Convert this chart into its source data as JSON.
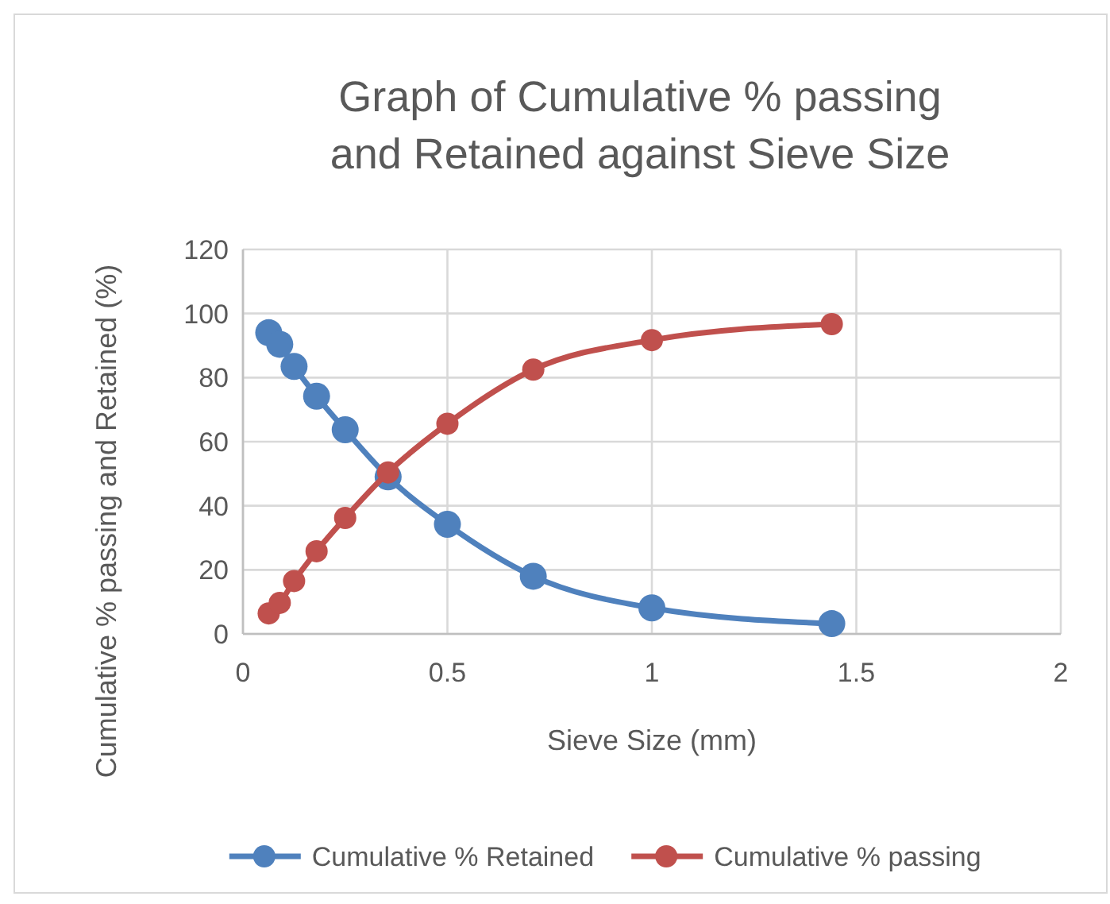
{
  "chart_data": {
    "type": "line",
    "title": "Graph of Cumulative % passing and Retained against Sieve Size",
    "xlabel": "Sieve Size (mm)",
    "ylabel": "Cumulative % passing and Retained (%)",
    "x": [
      0.063,
      0.09,
      0.125,
      0.18,
      0.25,
      0.355,
      0.5,
      0.71,
      1.0,
      1.44
    ],
    "series": [
      {
        "name": "Cumulative % Retained",
        "color": "#4f81bd",
        "values": [
          94,
          90.4,
          83.5,
          74.2,
          63.7,
          49,
          34.2,
          18,
          8.1,
          3.2
        ]
      },
      {
        "name": "Cumulative % passing",
        "color": "#c0504d",
        "values": [
          6.4,
          9.7,
          16.5,
          25.8,
          36.2,
          50.4,
          65.6,
          82.5,
          91.7,
          96.7
        ]
      }
    ],
    "xlim": [
      0,
      2
    ],
    "xticks": [
      0,
      0.5,
      1,
      1.5,
      2
    ],
    "ylim": [
      0,
      120
    ],
    "yticks": [
      0,
      20,
      40,
      60,
      80,
      100,
      120
    ],
    "grid": true,
    "legend": "bottom",
    "marker": "circle",
    "line_style": "solid"
  }
}
